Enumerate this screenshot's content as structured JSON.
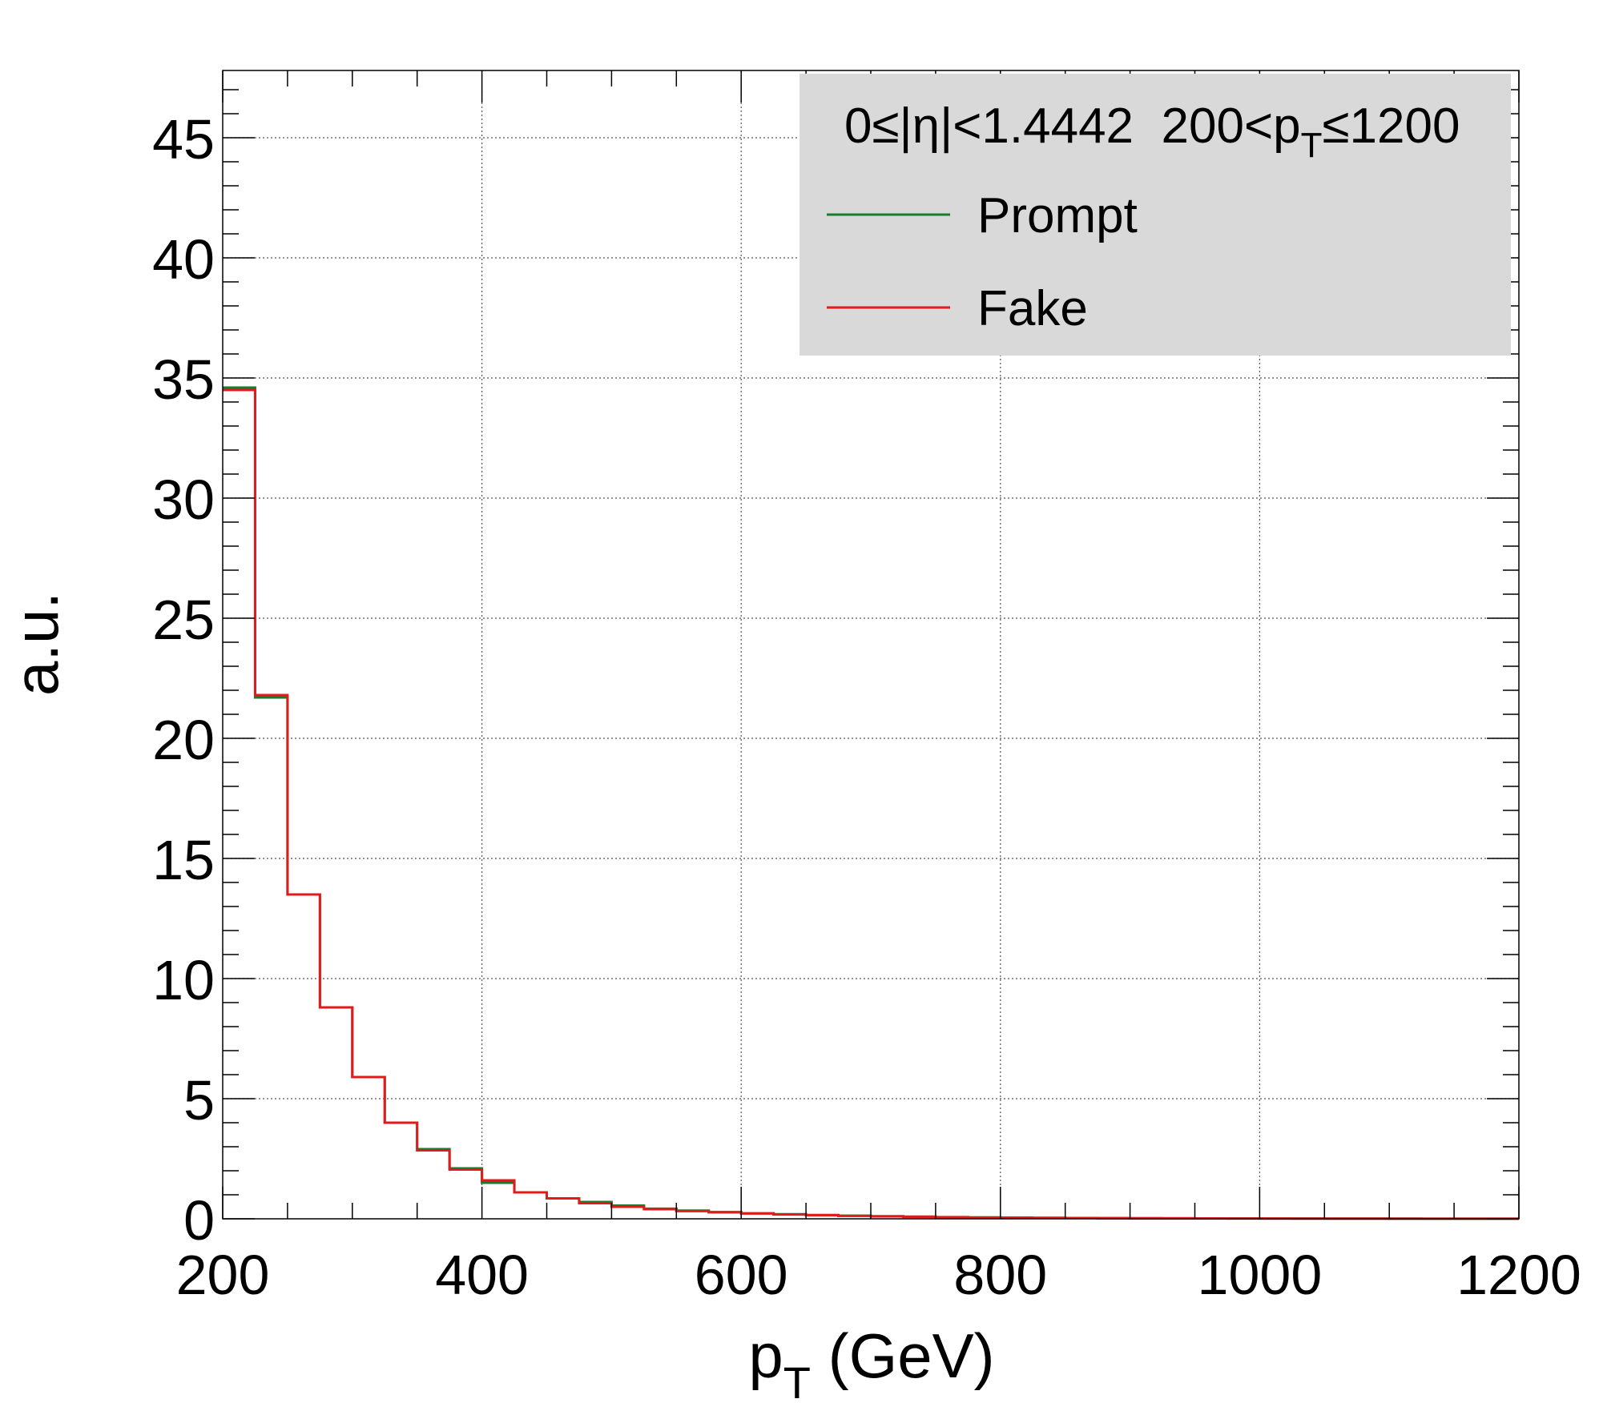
{
  "chart_data": {
    "type": "histogram",
    "xlabel": {
      "base": "p",
      "sub": "T",
      "suffix": " (GeV)"
    },
    "ylabel": "a.u.",
    "xlim": [
      200,
      1200
    ],
    "ylim": [
      0,
      47.8
    ],
    "grid": true,
    "legend_placement": "top-right",
    "x_ticks": [
      200,
      400,
      600,
      800,
      1000,
      1200
    ],
    "y_ticks": [
      0,
      5,
      10,
      15,
      20,
      25,
      30,
      35,
      40,
      45
    ],
    "bin_edges": [
      200,
      225,
      250,
      275,
      300,
      325,
      350,
      375,
      400,
      425,
      450,
      475,
      500,
      525,
      550,
      575,
      600,
      625,
      650,
      675,
      700,
      725,
      750,
      775,
      800,
      825,
      850,
      875,
      900,
      925,
      950,
      975,
      1000,
      1025,
      1050,
      1075,
      1100,
      1125,
      1150,
      1175,
      1200
    ],
    "legend_header": {
      "eta": "0≤|η|<1.4442",
      "pt_prefix": "200<p",
      "pt_sub": "T",
      "pt_suffix": "≤1200"
    },
    "series": [
      {
        "name": "Prompt",
        "color": "#1a7a2e",
        "values": [
          34.6,
          21.7,
          13.5,
          8.8,
          5.9,
          4.0,
          2.9,
          2.1,
          1.5,
          1.1,
          0.85,
          0.7,
          0.55,
          0.42,
          0.34,
          0.28,
          0.23,
          0.19,
          0.16,
          0.13,
          0.11,
          0.09,
          0.07,
          0.06,
          0.05,
          0.04,
          0.035,
          0.03,
          0.025,
          0.02,
          0.018,
          0.015,
          0.013,
          0.011,
          0.01,
          0.008,
          0.007,
          0.006,
          0.005,
          0.004
        ]
      },
      {
        "name": "Fake",
        "color": "#e31a1c",
        "values": [
          34.5,
          21.8,
          13.5,
          8.8,
          5.9,
          4.0,
          2.85,
          2.05,
          1.6,
          1.1,
          0.85,
          0.65,
          0.5,
          0.4,
          0.32,
          0.27,
          0.22,
          0.18,
          0.15,
          0.12,
          0.1,
          0.08,
          0.065,
          0.055,
          0.045,
          0.038,
          0.032,
          0.027,
          0.022,
          0.019,
          0.016,
          0.014,
          0.012,
          0.01,
          0.009,
          0.007,
          0.006,
          0.005,
          0.004,
          0.003
        ]
      }
    ]
  }
}
